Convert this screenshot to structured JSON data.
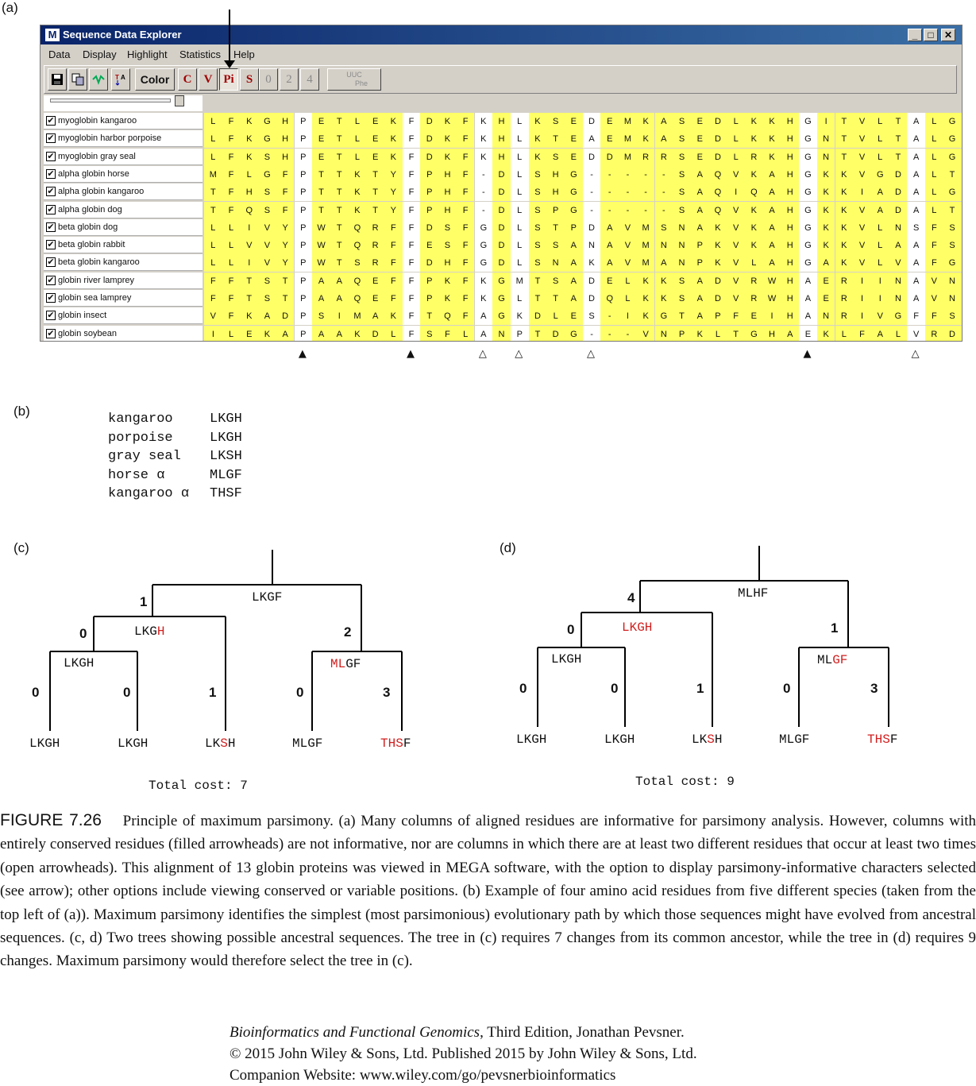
{
  "panels": {
    "a": "(a)",
    "b": "(b)",
    "c": "(c)",
    "d": "(d)"
  },
  "window": {
    "title": "Sequence Data Explorer",
    "controls": {
      "minimize": "_",
      "maximize": "□",
      "close": "✕"
    },
    "app_icon": "M",
    "menu": [
      "Data",
      "Display",
      "Highlight",
      "Statistics",
      "Help"
    ],
    "toolbar": {
      "save_icon": "save-icon",
      "color_label": "Color",
      "highlight_buttons": [
        "C",
        "V",
        "Pi",
        "S",
        "0",
        "2",
        "4"
      ],
      "codon_label_top": "UUC",
      "codon_label_bottom": "Phe"
    }
  },
  "alignment": {
    "highlight_color": "#ffff66",
    "species": [
      {
        "name": "myoglobin kangaroo",
        "seq": "LFKGHPETLEKFDKFKHLKSEDEMKASEDLKKHGITVLTALGNILKKK"
      },
      {
        "name": "myoglobin harbor porpoise",
        "seq": "LFKGHPETLEKFDKFKHLKTEAEMKASEDLKKHGNTVLTALGGILKKK"
      },
      {
        "name": "myoglobin gray seal",
        "seq": "LFKSHPETLEKFDKFKHLKSEDDMRRSEDLRKHGNTVLTALGGILKKK"
      },
      {
        "name": "alpha globin horse",
        "seq": "MFLGFPTTKTYFPHF-DLSHG-----SAQVKAHGKKVGDALTLAVGHL"
      },
      {
        "name": "alpha globin kangaroo",
        "seq": "TFHSFPTTKTYFPHF-DLSHG-----SAQIQAHGKKIADALGQAVEHI"
      },
      {
        "name": "alpha globin dog",
        "seq": "TFQSFPTTKTYFPHF-DLSPG-----SAQVKAHGKKVADALTTAVAHL"
      },
      {
        "name": "beta globin dog",
        "seq": "LLIVYPWTQRFFDSFGDLSTPDAVMSNAKVKAHGKKVLNSFSDGLKNL"
      },
      {
        "name": "beta globin rabbit",
        "seq": "LLVVYPWTQRFFESFGDLSSANAVMNNPKVKAHGKKVLAAFSEGLSHL"
      },
      {
        "name": "beta globin kangaroo",
        "seq": "LLIVYPWTSRFFDHFGDLSNAKAVMANPKVLAHGAKVLVAFGDAIKNL"
      },
      {
        "name": "globin river lamprey",
        "seq": "FFTSTPAAQEFFPKFKGMTSADELKKSADVRWHAERIINAVNDAVASM"
      },
      {
        "name": "globin sea lamprey",
        "seq": "FFTSTPAAQEFFPKFKGLTTADQLKKSADVRWHAERIINAVNDAVASM"
      },
      {
        "name": "globin insect",
        "seq": "VFKADPSIMAKFTQFAGKDLES-IKGTAPFEIHANRIVGFFSKIIGEL"
      },
      {
        "name": "globin soybean",
        "seq": "ILEKAPAAKDLFSFLANPTDG---VNPKLTGHAEKLFALVRDSAGQL"
      }
    ],
    "plain_columns": [
      5,
      11,
      15,
      17,
      21,
      33,
      39
    ],
    "markers": [
      {
        "column": 5,
        "symbol": "▲"
      },
      {
        "column": 11,
        "symbol": "▲"
      },
      {
        "column": 15,
        "symbol": "△"
      },
      {
        "column": 17,
        "symbol": "△"
      },
      {
        "column": 21,
        "symbol": "△"
      },
      {
        "column": 33,
        "symbol": "▲"
      },
      {
        "column": 39,
        "symbol": "△"
      }
    ]
  },
  "panel_b": {
    "rows": [
      {
        "species": "kangaroo",
        "seq": "LKGH"
      },
      {
        "species": "porpoise",
        "seq": "LKGH"
      },
      {
        "species": "gray seal",
        "seq": "LKSH"
      },
      {
        "species": "horse α",
        "seq": "MLGF"
      },
      {
        "species": "kangaroo α",
        "seq": "THSF"
      }
    ]
  },
  "tree_c": {
    "root": "LKGF",
    "node_left": {
      "black": "LKG",
      "red": "H"
    },
    "node_inner": "LKGH",
    "node_right": {
      "red": "ML",
      "black": "GF"
    },
    "costs": [
      "1",
      "0",
      "2",
      "0",
      "0",
      "1",
      "0",
      "3"
    ],
    "leaves": [
      {
        "black": "LKGH",
        "red": ""
      },
      {
        "black": "LKGH",
        "red": ""
      },
      {
        "black": "LK",
        "red": "S",
        "tail": "H"
      },
      {
        "black": "MLGF",
        "red": ""
      },
      {
        "black": "",
        "red": "THS",
        "tail": "F"
      }
    ],
    "total": "Total cost: 7"
  },
  "tree_d": {
    "root": "MLHF",
    "node_left": "LKGH",
    "node_inner": "LKGH",
    "node_right": {
      "black": "ML",
      "red": "GF"
    },
    "costs": [
      "4",
      "0",
      "1",
      "0",
      "0",
      "1",
      "0",
      "3"
    ],
    "leaves": [
      {
        "black": "LKGH",
        "red": ""
      },
      {
        "black": "LKGH",
        "red": ""
      },
      {
        "black": "LK",
        "red": "S",
        "tail": "H"
      },
      {
        "black": "MLGF",
        "red": ""
      },
      {
        "black": "",
        "red": "THS",
        "tail": "F"
      }
    ],
    "total": "Total cost: 9"
  },
  "caption": {
    "figure": "FIGURE 7.26",
    "text": "Principle of maximum parsimony. (a) Many columns of aligned residues are informative for parsimony analysis. However, columns with entirely conserved residues (filled arrowheads) are not informative, nor are columns in which there are at least two different residues that occur at least two times (open arrowheads). This alignment of 13 globin proteins was viewed in MEGA software, with the option to display parsimony-informative characters selected (see arrow); other options include viewing conserved or variable positions. (b) Example of four amino acid residues from five different species (taken from the top left of (a)). Maximum parsimony identifies the simplest (most parsimonious) evolutionary path by which those sequences might have evolved from ancestral sequences. (c, d) Two trees showing possible ancestral sequences. The tree in (c) requires 7 changes from its common ancestor, while the tree in (d) requires 9 changes. Maximum parsimony would therefore select the tree in (c)."
  },
  "footer": {
    "book": "Bioinformatics and Functional Genomics",
    "rest": ", Third Edition, Jonathan Pevsner.",
    "line2": "© 2015 John Wiley & Sons, Ltd. Published 2015 by John Wiley & Sons, Ltd.",
    "line3": "Companion Website: www.wiley.com/go/pevsnerbioinformatics"
  }
}
